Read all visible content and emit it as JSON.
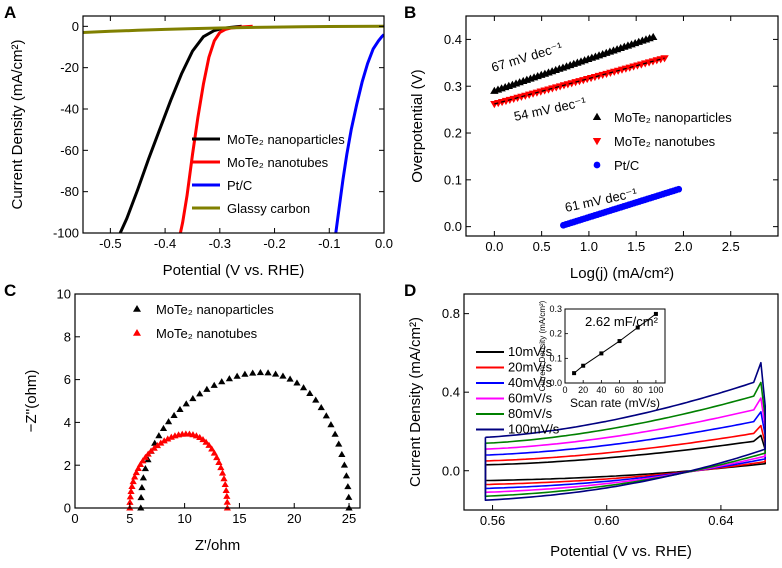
{
  "chart_data": [
    {
      "panel": "A",
      "type": "line",
      "xlabel": "Potential (V vs. RHE)",
      "ylabel": "Current Density (mA/cm²)",
      "xlim": [
        -0.55,
        0.0
      ],
      "ylim": [
        -100,
        5
      ],
      "xticks": [
        -0.5,
        -0.4,
        -0.3,
        -0.2,
        -0.1,
        0.0
      ],
      "yticks": [
        0,
        -20,
        -40,
        -60,
        -80,
        -100
      ],
      "xtick_labels": [
        "-0.5",
        "-0.4",
        "-0.3",
        "-0.2",
        "-0.1",
        "0.0"
      ],
      "ytick_labels": [
        "0",
        "-20",
        "-40",
        "-60",
        "-80",
        "-100"
      ],
      "legend": [
        "MoTe₂ nanoparticles",
        "MoTe₂ nanotubes",
        "Pt/C",
        "Glassy carbon"
      ],
      "series": [
        {
          "name": "MoTe₂ nanoparticles",
          "color": "#000000",
          "x": [
            -0.482,
            -0.47,
            -0.45,
            -0.43,
            -0.41,
            -0.39,
            -0.37,
            -0.35,
            -0.33,
            -0.31,
            -0.295,
            -0.28,
            -0.26
          ],
          "y": [
            -100,
            -93,
            -79,
            -64,
            -50,
            -36,
            -23,
            -12,
            -5,
            -2,
            -1,
            -0.5,
            0
          ]
        },
        {
          "name": "MoTe₂ nanotubes",
          "color": "#ff0000",
          "x": [
            -0.372,
            -0.368,
            -0.36,
            -0.35,
            -0.34,
            -0.33,
            -0.32,
            -0.31,
            -0.3,
            -0.29,
            -0.28,
            -0.26,
            -0.24
          ],
          "y": [
            -100,
            -95,
            -82,
            -62,
            -44,
            -28,
            -15,
            -7,
            -3,
            -1.5,
            -0.8,
            -0.3,
            0
          ]
        },
        {
          "name": "Pt/C",
          "color": "#0000ff",
          "x": [
            -0.088,
            -0.082,
            -0.075,
            -0.068,
            -0.06,
            -0.05,
            -0.04,
            -0.03,
            -0.02,
            -0.01,
            -0.004,
            0.0
          ],
          "y": [
            -100,
            -88,
            -74,
            -62,
            -50,
            -38,
            -27,
            -18,
            -11,
            -7,
            -5,
            -4
          ]
        },
        {
          "name": "Glassy carbon",
          "color": "#808000",
          "x": [
            -0.55,
            -0.5,
            -0.45,
            -0.4,
            -0.35,
            -0.3,
            -0.25,
            -0.2,
            -0.15,
            -0.1,
            -0.05,
            0.0
          ],
          "y": [
            -3.0,
            -2.4,
            -1.9,
            -1.5,
            -1.1,
            -0.8,
            -0.55,
            -0.35,
            -0.2,
            -0.1,
            -0.05,
            0.0
          ]
        }
      ]
    },
    {
      "panel": "B",
      "type": "scatter",
      "xlabel": "Log(j) (mA/cm²)",
      "ylabel": "Overpotential (V)",
      "xlim": [
        -0.3,
        3.0
      ],
      "ylim": [
        -0.02,
        0.45
      ],
      "xticks": [
        0.0,
        0.5,
        1.0,
        1.5,
        2.0,
        2.5
      ],
      "yticks": [
        0.0,
        0.1,
        0.2,
        0.3,
        0.4
      ],
      "xtick_labels": [
        "0.0",
        "0.5",
        "1.0",
        "1.5",
        "2.0",
        "2.5"
      ],
      "ytick_labels": [
        "0.0",
        "0.1",
        "0.2",
        "0.3",
        "0.4"
      ],
      "legend": [
        "MoTe₂ nanoparticles",
        "MoTe₂ nanotubes",
        "Pt/C"
      ],
      "annotations": [
        {
          "text": "67 mV dec⁻¹",
          "color": "#000000"
        },
        {
          "text": "54 mV dec⁻¹",
          "color": "#ff0000"
        },
        {
          "text": "61 mV dec⁻¹",
          "color": "#0000ff"
        }
      ],
      "series": [
        {
          "name": "MoTe₂ nanoparticles",
          "color": "#000000",
          "marker": "triangle-up",
          "x_range": [
            0.0,
            1.68
          ],
          "y_range": [
            0.29,
            0.405
          ]
        },
        {
          "name": "MoTe₂ nanotubes",
          "color": "#ff0000",
          "marker": "triangle-down",
          "x_range": [
            0.0,
            1.8
          ],
          "y_range": [
            0.262,
            0.36
          ]
        },
        {
          "name": "Pt/C",
          "color": "#0000ff",
          "marker": "circle",
          "x_range": [
            0.73,
            1.95
          ],
          "y_range": [
            0.003,
            0.08
          ]
        }
      ]
    },
    {
      "panel": "C",
      "type": "scatter",
      "xlabel": "Z'/ohm",
      "ylabel": "−Z''(ohm)",
      "xlim": [
        0,
        26
      ],
      "ylim": [
        0,
        10
      ],
      "xticks": [
        0,
        5,
        10,
        15,
        20,
        25
      ],
      "yticks": [
        0,
        2,
        4,
        6,
        8,
        10
      ],
      "xtick_labels": [
        "0",
        "5",
        "10",
        "15",
        "20",
        "25"
      ],
      "ytick_labels": [
        "0",
        "2",
        "4",
        "6",
        "8",
        "10"
      ],
      "legend": [
        "MoTe₂ nanoparticles",
        "MoTe₂ nanotubes"
      ],
      "series": [
        {
          "name": "MoTe₂ nanoparticles",
          "color": "#000000",
          "marker": "triangle-up",
          "semicircle": {
            "x_start": 6.0,
            "x_end": 25.0,
            "peak": 6.4
          }
        },
        {
          "name": "MoTe₂ nanotubes",
          "color": "#ff0000",
          "marker": "triangle-up",
          "semicircle": {
            "x_start": 5.0,
            "x_end": 13.9,
            "peak": 3.5
          }
        }
      ]
    },
    {
      "panel": "D",
      "type": "line",
      "xlabel": "Potential (V vs. RHE)",
      "ylabel": "Current Density (mA/cm²)",
      "xlim": [
        0.55,
        0.66
      ],
      "ylim": [
        -0.2,
        0.9
      ],
      "xticks": [
        0.56,
        0.6,
        0.64
      ],
      "yticks": [
        0.0,
        0.4,
        0.8
      ],
      "xtick_labels": [
        "0.56",
        "0.60",
        "0.64"
      ],
      "ytick_labels": [
        "0.0",
        "0.4",
        "0.8"
      ],
      "legend": [
        "10mV/s",
        "20mV/s",
        "40mV/s",
        "60mV/s",
        "80mV/s",
        "100mV/s"
      ],
      "series": [
        {
          "name": "10mV/s",
          "color": "#000000",
          "upper_start": 0.03,
          "upper_end": 0.15,
          "peak": 0.18,
          "lower_start": -0.05
        },
        {
          "name": "20mV/s",
          "color": "#ff0000",
          "upper_start": 0.05,
          "upper_end": 0.19,
          "peak": 0.23,
          "lower_start": -0.07
        },
        {
          "name": "40mV/s",
          "color": "#0000ff",
          "upper_start": 0.08,
          "upper_end": 0.25,
          "peak": 0.3,
          "lower_start": -0.09
        },
        {
          "name": "60mV/s",
          "color": "#ff00ff",
          "upper_start": 0.11,
          "upper_end": 0.31,
          "peak": 0.37,
          "lower_start": -0.11
        },
        {
          "name": "80mV/s",
          "color": "#008000",
          "upper_start": 0.14,
          "upper_end": 0.38,
          "peak": 0.45,
          "lower_start": -0.13
        },
        {
          "name": "100mV/s",
          "color": "#000080",
          "upper_start": 0.17,
          "upper_end": 0.45,
          "peak": 0.55,
          "lower_start": -0.15
        }
      ],
      "inset": {
        "type": "scatter",
        "xlabel": "Scan rate (mV/s)",
        "ylabel": "Current Density (mA/cm²)",
        "annotation": "2.62 mF/cm²",
        "xlim": [
          0,
          110
        ],
        "ylim": [
          0,
          0.3
        ],
        "xticks": [
          0,
          20,
          40,
          60,
          80,
          100
        ],
        "yticks": [
          0.0,
          0.1,
          0.2,
          0.3
        ],
        "xtick_labels": [
          "0",
          "20",
          "40",
          "60",
          "80",
          "100"
        ],
        "ytick_labels": [
          "0.0",
          "0.1",
          "0.2",
          "0.3"
        ],
        "x": [
          10,
          20,
          40,
          60,
          80,
          100
        ],
        "y": [
          0.04,
          0.07,
          0.12,
          0.17,
          0.225,
          0.28
        ]
      }
    }
  ]
}
